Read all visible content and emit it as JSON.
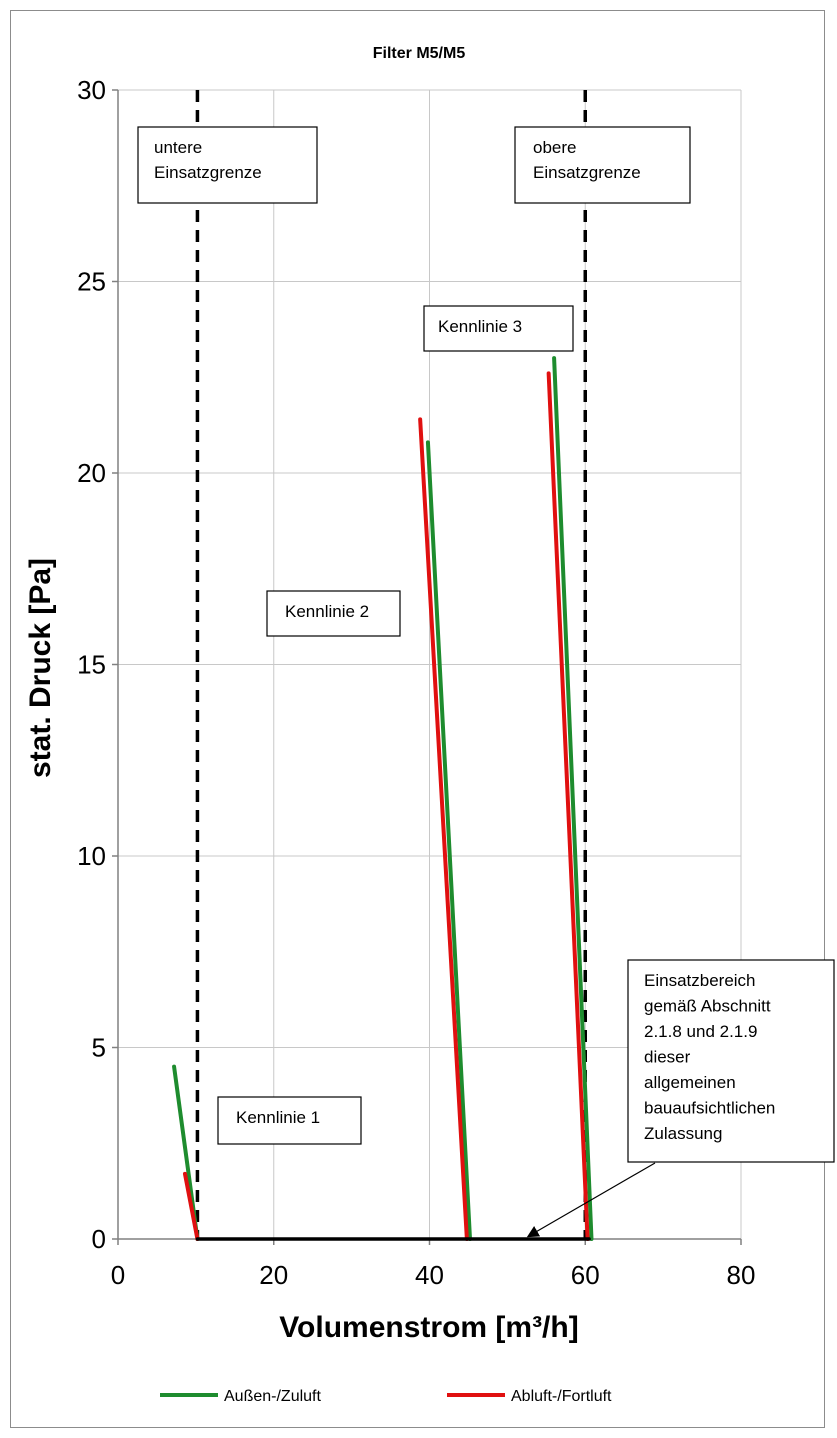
{
  "chart_data": {
    "type": "line",
    "title": "Filter M5/M5",
    "xlabel": "Volumenstrom [m³/h]",
    "ylabel": "stat. Druck [Pa]",
    "xlim": [
      0,
      80
    ],
    "ylim": [
      0,
      30
    ],
    "xticks": [
      "0",
      "20",
      "40",
      "60",
      "80"
    ],
    "yticks": [
      "0",
      "5",
      "10",
      "15",
      "20",
      "25",
      "30"
    ],
    "grid": true,
    "legend": {
      "placement": "bottom",
      "entries": [
        {
          "name": "Außen-/Zuluft",
          "color": "#1e8c2e"
        },
        {
          "name": "Abluft-/Fortluft",
          "color": "#e01010"
        }
      ]
    },
    "series": [
      {
        "name": "Außen-/Zuluft",
        "color": "#1e8c2e",
        "segments": [
          [
            [
              7.2,
              4.5
            ],
            [
              10.2,
              0
            ]
          ],
          [
            [
              39.8,
              20.8
            ],
            [
              45.2,
              0
            ]
          ],
          [
            [
              56.0,
              23.0
            ],
            [
              60.8,
              0
            ]
          ]
        ]
      },
      {
        "name": "Abluft-/Fortluft",
        "color": "#e01010",
        "segments": [
          [
            [
              8.6,
              1.7
            ],
            [
              10.2,
              0
            ]
          ],
          [
            [
              38.8,
              21.4
            ],
            [
              44.8,
              0
            ]
          ],
          [
            [
              55.3,
              22.6
            ],
            [
              60.3,
              0
            ]
          ]
        ]
      },
      {
        "name": "Einsatzbereich",
        "color": "#000000",
        "segments": [
          [
            [
              10.2,
              0
            ],
            [
              60.5,
              0
            ]
          ]
        ]
      }
    ],
    "limits": [
      {
        "x": 10.2,
        "label_lines": [
          "untere",
          "Einsatzgrenze"
        ]
      },
      {
        "x": 60.0,
        "label_lines": [
          "obere",
          "Einsatzgrenze"
        ]
      }
    ],
    "annotations": [
      {
        "text": "Kennlinie 1"
      },
      {
        "text": "Kennlinie  2"
      },
      {
        "text": "Kennlinie 3"
      },
      {
        "lines": [
          "Einsatzbereich",
          "gemäß Abschnitt",
          "2.1.8 und 2.1.9",
          "dieser",
          "allgemeinen",
          "bauaufsichtlichen",
          "Zulassung"
        ],
        "arrow_to": [
          52.5,
          0
        ]
      }
    ]
  }
}
